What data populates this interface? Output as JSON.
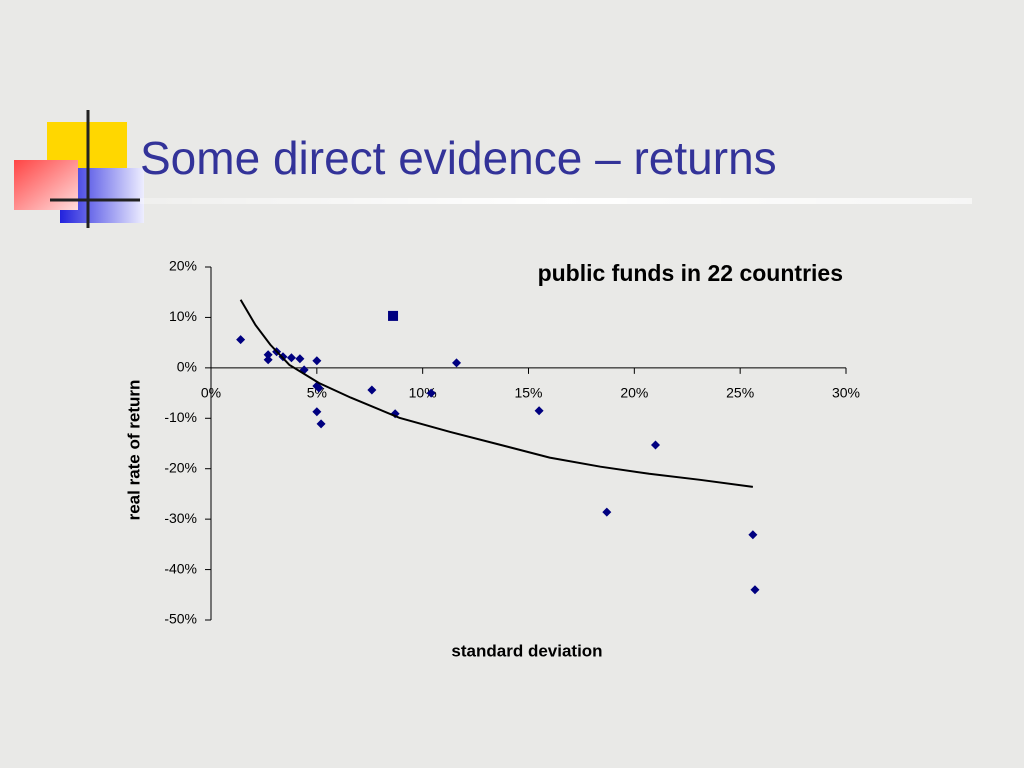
{
  "slide": {
    "title": "Some direct evidence – returns"
  },
  "chart_data": {
    "type": "scatter",
    "title": "public funds in 22 countries",
    "x_label": "standard deviation",
    "y_label": "real rate of return",
    "xlim": [
      0,
      30
    ],
    "ylim": [
      -50,
      20
    ],
    "xticks": [
      {
        "value": 0,
        "label": "0%"
      },
      {
        "value": 5,
        "label": "5%"
      },
      {
        "value": 10,
        "label": "10%"
      },
      {
        "value": 15,
        "label": "15%"
      },
      {
        "value": 20,
        "label": "20%"
      },
      {
        "value": 25,
        "label": "25%"
      },
      {
        "value": 30,
        "label": "30%"
      }
    ],
    "yticks": [
      {
        "value": 20,
        "label": "20%"
      },
      {
        "value": 10,
        "label": "10%"
      },
      {
        "value": 0,
        "label": "0%"
      },
      {
        "value": -10,
        "label": "-10%"
      },
      {
        "value": -20,
        "label": "-20%"
      },
      {
        "value": -30,
        "label": "-30%"
      },
      {
        "value": -40,
        "label": "-40%"
      },
      {
        "value": -50,
        "label": "-50%"
      }
    ],
    "series": [
      {
        "marker": "diamond",
        "color": "#000080",
        "x": [
          1.4,
          2.7,
          2.7,
          3.1,
          3.4,
          3.8,
          4.2,
          4.4,
          5.0,
          5.0,
          5.1,
          5.0,
          5.2,
          7.6,
          8.7,
          10.4,
          11.6,
          15.5,
          18.7,
          21.0,
          25.6,
          25.7
        ],
        "values": [
          5.6,
          2.6,
          1.6,
          3.2,
          2.2,
          2.0,
          1.8,
          -0.4,
          1.4,
          -3.6,
          -4.0,
          -8.7,
          -11.1,
          -4.4,
          -9.1,
          -5.0,
          1.0,
          -8.5,
          -28.6,
          -15.3,
          -33.1,
          -44.0
        ]
      },
      {
        "marker": "square",
        "color": "#000080",
        "x": [
          8.6
        ],
        "values": [
          10.3
        ]
      },
      {
        "marker": "line",
        "color": "#000000",
        "x": [
          1.4,
          2.1,
          2.8,
          3.7,
          5.1,
          6.6,
          8.9,
          11.3,
          13.7,
          16.0,
          18.4,
          20.7,
          23.1,
          25.6
        ],
        "values": [
          13.5,
          8.5,
          4.6,
          0.6,
          -3.0,
          -5.9,
          -9.9,
          -12.7,
          -15.3,
          -17.8,
          -19.6,
          -21.0,
          -22.2,
          -23.6
        ]
      }
    ]
  }
}
